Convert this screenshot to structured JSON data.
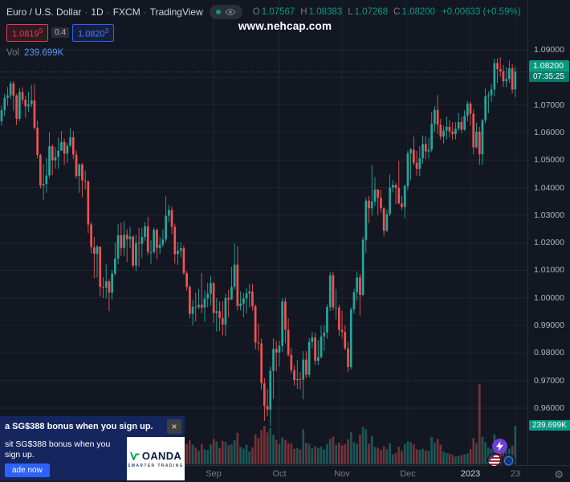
{
  "header": {
    "symbol_title": "Euro / U.S. Dollar",
    "interval": "1D",
    "exchange": "FXCM",
    "source": "TradingView",
    "separator": "·",
    "ohlc": {
      "o_label": "O",
      "o_value": "1.07567",
      "h_label": "H",
      "h_value": "1.08383",
      "l_label": "L",
      "l_value": "1.07268",
      "c_label": "C",
      "c_value": "1.08200",
      "change": "+0.00633 (+0.59%)"
    },
    "vol_label": "Vol",
    "vol_value": "239.699K"
  },
  "bid_ask": {
    "bid": "1.0819",
    "bid_sup": "9",
    "spread": "0.4",
    "ask": "1.0820",
    "ask_sup": "3"
  },
  "watermark": "www.nehcap.com",
  "price_axis": {
    "labels": [
      "1.09000",
      "1.07000",
      "1.06000",
      "1.05000",
      "1.04000",
      "1.03000",
      "1.02000",
      "1.01000",
      "1.00000",
      "0.99000",
      "0.98000",
      "0.97000",
      "0.96000"
    ],
    "last_price_badge": {
      "price": "1.08200",
      "countdown": "07:35:25"
    },
    "volume_badge": "239.699K"
  },
  "time_axis": {
    "ticks": [
      {
        "label": "Sep",
        "i": 71
      },
      {
        "label": "Oct",
        "i": 93
      },
      {
        "label": "Nov",
        "i": 114
      },
      {
        "label": "Dec",
        "i": 136
      },
      {
        "label": "2023",
        "i": 157,
        "year": true
      },
      {
        "label": "23",
        "i": 172
      }
    ],
    "gear_icon": "⚙"
  },
  "ad": {
    "line1": "a SG$388 bonus when you sign up.",
    "close_label": "×",
    "line2": "sit SG$388 bonus when you sign up.",
    "button": "ade now",
    "brand": "OANDA",
    "brand_tagline": "SMARTER TRADING"
  },
  "colors": {
    "up": "#26a69a",
    "down": "#ef5350",
    "accent_green": "#089981",
    "bid_red": "#f23645",
    "ask_blue": "#2962ff",
    "vol_value_blue": "#5b9cf6",
    "badge_green": "#089981",
    "background": "#131722"
  },
  "chart_data": {
    "type": "candlestick",
    "symbol": "EUR/USD",
    "interval": "1D",
    "source": "FXCM",
    "title": "Euro / U.S. Dollar 1D FXCM",
    "price_axis_range": [
      0.96,
      1.09
    ],
    "months_shown": [
      "Sep",
      "Oct",
      "Nov",
      "Dec",
      "2023"
    ],
    "last": {
      "o": 1.07567,
      "h": 1.08383,
      "l": 1.07268,
      "c": 1.082,
      "change": 0.00633,
      "change_pct": 0.59,
      "volume": "239.699K",
      "bid": 1.08199,
      "ask": 1.08203,
      "spread": 0.4,
      "countdown": "07:35:25"
    },
    "columns": "open,high,low,close,volume_k",
    "candles": [
      [
        1.064,
        1.0697,
        1.0625,
        1.0681,
        121
      ],
      [
        1.0681,
        1.074,
        1.0661,
        1.0725,
        98
      ],
      [
        1.0725,
        1.0765,
        1.0697,
        1.0735,
        103
      ],
      [
        1.0735,
        1.0786,
        1.0721,
        1.0778,
        67
      ],
      [
        1.0778,
        1.0787,
        1.0678,
        1.0734,
        142
      ],
      [
        1.0734,
        1.074,
        1.0627,
        1.065,
        156
      ],
      [
        1.065,
        1.0761,
        1.0642,
        1.0747,
        128
      ],
      [
        1.0747,
        1.0764,
        1.0703,
        1.0719,
        134
      ],
      [
        1.0719,
        1.0734,
        1.0653,
        1.0695,
        102
      ],
      [
        1.0695,
        1.0748,
        1.0675,
        1.0702,
        96
      ],
      [
        1.0702,
        1.0773,
        1.0691,
        1.0716,
        118
      ],
      [
        1.0716,
        1.0774,
        1.061,
        1.0617,
        171
      ],
      [
        1.0617,
        1.0642,
        1.0506,
        1.0518,
        188
      ],
      [
        1.0518,
        1.0523,
        1.0397,
        1.0408,
        174
      ],
      [
        1.0408,
        1.0485,
        1.0355,
        1.0413,
        163
      ],
      [
        1.0413,
        1.0507,
        1.0381,
        1.0444,
        190
      ],
      [
        1.0444,
        1.0601,
        1.0435,
        1.055,
        181
      ],
      [
        1.055,
        1.0557,
        1.0445,
        1.0499,
        152
      ],
      [
        1.0499,
        1.0547,
        1.047,
        1.0511,
        88
      ],
      [
        1.0511,
        1.0582,
        1.0468,
        1.0534,
        109
      ],
      [
        1.0534,
        1.0605,
        1.0533,
        1.0565,
        112
      ],
      [
        1.0565,
        1.0579,
        1.0483,
        1.0523,
        126
      ],
      [
        1.0523,
        1.0562,
        1.049,
        1.0553,
        97
      ],
      [
        1.0553,
        1.0615,
        1.0546,
        1.0583,
        89
      ],
      [
        1.0583,
        1.0606,
        1.0503,
        1.052,
        110
      ],
      [
        1.052,
        1.0536,
        1.0433,
        1.0442,
        133
      ],
      [
        1.0442,
        1.0488,
        1.0381,
        1.0484,
        147
      ],
      [
        1.0484,
        1.049,
        1.0365,
        1.0426,
        129
      ],
      [
        1.0426,
        1.0462,
        1.0394,
        1.0423,
        61
      ],
      [
        1.0423,
        1.0426,
        1.0235,
        1.0266,
        196
      ],
      [
        1.0266,
        1.0274,
        1.0162,
        1.0184,
        203
      ],
      [
        1.0184,
        1.0221,
        1.0072,
        1.016,
        219
      ],
      [
        1.016,
        1.0192,
        1.0074,
        1.0186,
        187
      ],
      [
        1.0186,
        1.0187,
        1.0006,
        1.004,
        214
      ],
      [
        1.004,
        1.0075,
        0.9999,
        1.0037,
        176
      ],
      [
        1.0037,
        1.0122,
        0.9998,
        1.006,
        158
      ],
      [
        1.006,
        1.0067,
        0.9952,
        1.0019,
        228
      ],
      [
        1.0019,
        1.0101,
        0.9993,
        1.0088,
        141
      ],
      [
        1.0088,
        1.0201,
        1.008,
        1.0143,
        132
      ],
      [
        1.0143,
        1.0269,
        1.0122,
        1.0227,
        154
      ],
      [
        1.0227,
        1.0273,
        1.0153,
        1.0181,
        139
      ],
      [
        1.0181,
        1.0278,
        1.0151,
        1.0229,
        161
      ],
      [
        1.0229,
        1.0249,
        1.013,
        1.0213,
        118
      ],
      [
        1.0213,
        1.0258,
        1.018,
        1.0222,
        92
      ],
      [
        1.0222,
        1.0227,
        1.0108,
        1.0117,
        124
      ],
      [
        1.0117,
        1.0229,
        1.0097,
        1.0199,
        136
      ],
      [
        1.0199,
        1.0254,
        1.0113,
        1.0196,
        128
      ],
      [
        1.0196,
        1.0254,
        1.0144,
        1.0221,
        117
      ],
      [
        1.0221,
        1.0275,
        1.0207,
        1.026,
        84
      ],
      [
        1.026,
        1.0294,
        1.0155,
        1.0166,
        122
      ],
      [
        1.0166,
        1.0209,
        1.0123,
        1.0166,
        108
      ],
      [
        1.0166,
        1.0254,
        1.0161,
        1.0247,
        101
      ],
      [
        1.0247,
        1.0252,
        1.0141,
        1.0181,
        137
      ],
      [
        1.0181,
        1.0221,
        1.0159,
        1.0193,
        73
      ],
      [
        1.0193,
        1.0248,
        1.0183,
        1.0212,
        79
      ],
      [
        1.0212,
        1.0368,
        1.0202,
        1.0298,
        168
      ],
      [
        1.0298,
        1.0337,
        1.0276,
        1.0319,
        94
      ],
      [
        1.0319,
        1.0331,
        1.0232,
        1.0258,
        87
      ],
      [
        1.0258,
        1.0269,
        1.0125,
        1.0159,
        131
      ],
      [
        1.0159,
        1.0203,
        1.0119,
        1.0171,
        96
      ],
      [
        1.0171,
        1.0202,
        1.0147,
        1.018,
        77
      ],
      [
        1.018,
        1.0191,
        1.0083,
        1.009,
        119
      ],
      [
        1.009,
        1.0098,
        1.0026,
        1.004,
        127
      ],
      [
        1.004,
        1.0046,
        0.9926,
        0.9942,
        149
      ],
      [
        0.9942,
        0.9992,
        0.99,
        0.9968,
        122
      ],
      [
        0.9968,
        1.0019,
        0.9915,
        0.9967,
        104
      ],
      [
        0.9967,
        1.0033,
        0.9958,
        0.9975,
        83
      ],
      [
        0.9975,
        1.009,
        0.9944,
        0.9965,
        126
      ],
      [
        0.9965,
        1.0027,
        0.9913,
        0.9997,
        93
      ],
      [
        0.9997,
        1.0055,
        0.9966,
        1.0015,
        88
      ],
      [
        1.0015,
        1.0079,
        0.9972,
        1.0054,
        123
      ],
      [
        1.0054,
        1.0058,
        0.991,
        0.9945,
        158
      ],
      [
        0.9945,
        1.0,
        0.9878,
        0.9952,
        143
      ],
      [
        0.9952,
        0.9987,
        0.988,
        0.9927,
        102
      ],
      [
        0.9927,
        0.9987,
        0.9864,
        0.9903,
        147
      ],
      [
        0.9903,
        1.0015,
        0.9863,
        1.0,
        139
      ],
      [
        1.0,
        1.003,
        0.9929,
        0.9994,
        118
      ],
      [
        0.9994,
        1.0113,
        0.9993,
        1.004,
        124
      ],
      [
        1.004,
        1.0198,
        1.003,
        1.012,
        149
      ],
      [
        1.012,
        1.0187,
        0.9955,
        0.997,
        196
      ],
      [
        0.997,
        1.0023,
        0.9954,
        0.9979,
        108
      ],
      [
        0.9979,
        1.0018,
        0.993,
        0.9998,
        97
      ],
      [
        0.9998,
        1.0036,
        0.9943,
        1.0016,
        122
      ],
      [
        1.0016,
        1.005,
        0.9965,
        1.0023,
        81
      ],
      [
        1.0023,
        1.0051,
        0.9954,
        0.997,
        106
      ],
      [
        0.997,
        0.9976,
        0.9813,
        0.9838,
        187
      ],
      [
        0.9838,
        0.9907,
        0.9807,
        0.9835,
        164
      ],
      [
        0.9835,
        0.9852,
        0.9667,
        0.969,
        213
      ],
      [
        0.969,
        0.9709,
        0.9554,
        0.9608,
        239
      ],
      [
        0.9608,
        0.967,
        0.957,
        0.9594,
        198
      ],
      [
        0.9594,
        0.975,
        0.9536,
        0.9735,
        226
      ],
      [
        0.9735,
        0.9853,
        0.9634,
        0.9815,
        184
      ],
      [
        0.9815,
        0.9844,
        0.9733,
        0.9802,
        152
      ],
      [
        0.9802,
        0.9844,
        0.9751,
        0.9826,
        128
      ],
      [
        0.9826,
        0.9999,
        0.9804,
        0.9987,
        167
      ],
      [
        0.9987,
        1.0,
        0.9835,
        0.9884,
        151
      ],
      [
        0.9884,
        0.9926,
        0.9787,
        0.9793,
        132
      ],
      [
        0.9793,
        0.9818,
        0.9726,
        0.9737,
        128
      ],
      [
        0.9737,
        0.9755,
        0.9682,
        0.9702,
        96
      ],
      [
        0.9702,
        0.9774,
        0.967,
        0.9705,
        103
      ],
      [
        0.9705,
        0.973,
        0.9668,
        0.9703,
        92
      ],
      [
        0.9703,
        0.9807,
        0.9632,
        0.9776,
        218
      ],
      [
        0.9776,
        0.9807,
        0.9709,
        0.9721,
        134
      ],
      [
        0.9721,
        0.9854,
        0.9712,
        0.984,
        127
      ],
      [
        0.984,
        0.9876,
        0.9816,
        0.9857,
        98
      ],
      [
        0.9857,
        0.9873,
        0.9757,
        0.9772,
        112
      ],
      [
        0.9772,
        0.9846,
        0.9756,
        0.9785,
        101
      ],
      [
        0.9785,
        0.9899,
        0.978,
        0.986,
        109
      ],
      [
        0.986,
        0.99,
        0.9808,
        0.9874,
        93
      ],
      [
        0.9874,
        0.9976,
        0.9852,
        0.9967,
        126
      ],
      [
        0.9967,
        1.0093,
        0.9952,
        1.0082,
        158
      ],
      [
        1.0082,
        1.0094,
        0.9954,
        0.9965,
        172
      ],
      [
        0.9965,
        1.0032,
        0.9923,
        0.9965,
        121
      ],
      [
        0.9965,
        0.9975,
        0.9862,
        0.9884,
        136
      ],
      [
        0.9884,
        0.9953,
        0.9853,
        0.9876,
        118
      ],
      [
        0.9876,
        0.99,
        0.981,
        0.9817,
        124
      ],
      [
        0.9817,
        0.984,
        0.973,
        0.9749,
        156
      ],
      [
        0.9749,
        0.9966,
        0.9741,
        0.9958,
        201
      ],
      [
        0.9958,
        1.0034,
        0.9942,
        1.002,
        137
      ],
      [
        1.002,
        1.0096,
        0.999,
        1.0074,
        128
      ],
      [
        1.0074,
        1.0088,
        0.9936,
        1.0011,
        184
      ],
      [
        1.0011,
        1.0222,
        1.0005,
        1.021,
        232
      ],
      [
        1.021,
        1.0364,
        1.0163,
        1.0353,
        218
      ],
      [
        1.0353,
        1.037,
        1.0271,
        1.0325,
        129
      ],
      [
        1.0325,
        1.0481,
        1.0298,
        1.035,
        176
      ],
      [
        1.035,
        1.0438,
        1.0334,
        1.0393,
        108
      ],
      [
        1.0393,
        1.0395,
        1.0301,
        1.0363,
        102
      ],
      [
        1.0363,
        1.0392,
        1.031,
        1.0325,
        88
      ],
      [
        1.0325,
        1.033,
        1.0223,
        1.0243,
        112
      ],
      [
        1.0243,
        1.032,
        1.0239,
        1.0304,
        94
      ],
      [
        1.0304,
        1.0448,
        1.0296,
        1.04,
        131
      ],
      [
        1.04,
        1.0428,
        1.0382,
        1.041,
        62
      ],
      [
        1.041,
        1.0417,
        1.034,
        1.0399,
        71
      ],
      [
        1.0399,
        1.0497,
        1.0339,
        1.0343,
        109
      ],
      [
        1.0343,
        1.0369,
        1.0319,
        1.0329,
        83
      ],
      [
        1.0329,
        1.0411,
        1.0289,
        1.0406,
        127
      ],
      [
        1.0406,
        1.0533,
        1.0391,
        1.0525,
        142
      ],
      [
        1.0525,
        1.0545,
        1.0427,
        1.0538,
        138
      ],
      [
        1.0538,
        1.0585,
        1.0482,
        1.049,
        126
      ],
      [
        1.049,
        1.0533,
        1.0443,
        1.0468,
        94
      ],
      [
        1.0468,
        1.055,
        1.0442,
        1.0507,
        89
      ],
      [
        1.0507,
        1.0589,
        1.0487,
        1.0558,
        97
      ],
      [
        1.0558,
        1.0587,
        1.0503,
        1.0531,
        88
      ],
      [
        1.0531,
        1.058,
        1.0505,
        1.0538,
        84
      ],
      [
        1.0538,
        1.0673,
        1.0528,
        1.0631,
        171
      ],
      [
        1.0631,
        1.0695,
        1.0602,
        1.0682,
        134
      ],
      [
        1.0682,
        1.0736,
        1.0594,
        1.0628,
        158
      ],
      [
        1.0628,
        1.065,
        1.0574,
        1.0585,
        122
      ],
      [
        1.0585,
        1.0625,
        1.056,
        1.0607,
        78
      ],
      [
        1.0607,
        1.0658,
        1.0575,
        1.0621,
        71
      ],
      [
        1.0621,
        1.0645,
        1.0583,
        1.0604,
        66
      ],
      [
        1.0604,
        1.0638,
        1.0574,
        1.0594,
        59
      ],
      [
        1.0594,
        1.0638,
        1.0575,
        1.0614,
        48
      ],
      [
        1.0614,
        1.0671,
        1.0606,
        1.0638,
        52
      ],
      [
        1.0638,
        1.0657,
        1.0598,
        1.061,
        57
      ],
      [
        1.061,
        1.068,
        1.0606,
        1.066,
        63
      ],
      [
        1.066,
        1.0714,
        1.0639,
        1.0705,
        68
      ],
      [
        1.0705,
        1.0713,
        1.0626,
        1.0668,
        94
      ],
      [
        1.0668,
        1.0684,
        1.052,
        1.0546,
        163
      ],
      [
        1.0546,
        1.0635,
        1.0542,
        1.0603,
        132
      ],
      [
        1.0603,
        1.0621,
        1.0482,
        1.0521,
        500
      ],
      [
        1.0521,
        1.065,
        1.0483,
        1.0644,
        171
      ],
      [
        1.0644,
        1.0761,
        1.0634,
        1.0731,
        138
      ],
      [
        1.0731,
        1.0748,
        1.067,
        1.0735,
        104
      ],
      [
        1.0735,
        1.0776,
        1.0711,
        1.0756,
        96
      ],
      [
        1.0756,
        1.0868,
        1.0731,
        1.0852,
        187
      ],
      [
        1.0852,
        1.0869,
        1.078,
        1.083,
        121
      ],
      [
        1.083,
        1.0873,
        1.0802,
        1.0822,
        88
      ],
      [
        1.0822,
        1.0845,
        1.0766,
        1.0786,
        92
      ],
      [
        1.0786,
        1.0837,
        1.0764,
        1.0794,
        84
      ],
      [
        1.0794,
        1.0861,
        1.078,
        1.0833,
        98
      ],
      [
        1.0833,
        1.0848,
        1.0742,
        1.0756,
        116
      ],
      [
        1.07567,
        1.08383,
        1.07268,
        1.082,
        239.699
      ]
    ]
  }
}
